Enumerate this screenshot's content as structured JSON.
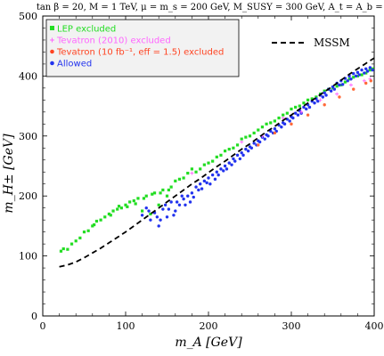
{
  "title": "tan β = 20,  M = 1 TeV,  μ = m_s = 200 GeV,  M_SUSY = 300 GeV,  A_t = A_b = 0",
  "chart_data": {
    "type": "scatter",
    "xlabel": "m_A [GeV]",
    "ylabel": "m_H± [GeV]",
    "xlim": [
      0,
      400
    ],
    "ylim": [
      0,
      500
    ],
    "xticks": [
      0,
      100,
      200,
      300,
      400
    ],
    "yticks": [
      0,
      100,
      200,
      300,
      400,
      500
    ],
    "grid": false,
    "legend_placement": "top-left",
    "series": [
      {
        "name": "LEP excluded",
        "color": "#22dd22",
        "marker": "square",
        "points": [
          [
            22,
            108
          ],
          [
            25,
            112
          ],
          [
            30,
            111
          ],
          [
            35,
            120
          ],
          [
            40,
            125
          ],
          [
            45,
            130
          ],
          [
            50,
            140
          ],
          [
            55,
            142
          ],
          [
            60,
            150
          ],
          [
            65,
            158
          ],
          [
            70,
            160
          ],
          [
            75,
            165
          ],
          [
            80,
            170
          ],
          [
            85,
            175
          ],
          [
            90,
            178
          ],
          [
            95,
            180
          ],
          [
            100,
            185
          ],
          [
            105,
            190
          ],
          [
            110,
            192
          ],
          [
            115,
            196
          ],
          [
            120,
            175
          ],
          [
            125,
            200
          ],
          [
            130,
            170
          ],
          [
            135,
            205
          ],
          [
            140,
            185
          ],
          [
            145,
            210
          ],
          [
            150,
            200
          ],
          [
            155,
            215
          ],
          [
            160,
            225
          ],
          [
            170,
            230
          ],
          [
            180,
            245
          ],
          [
            190,
            245
          ],
          [
            200,
            255
          ],
          [
            210,
            265
          ],
          [
            220,
            275
          ],
          [
            230,
            280
          ],
          [
            240,
            295
          ],
          [
            250,
            300
          ],
          [
            260,
            310
          ],
          [
            270,
            320
          ],
          [
            280,
            325
          ],
          [
            290,
            335
          ],
          [
            300,
            345
          ],
          [
            310,
            350
          ],
          [
            320,
            360
          ],
          [
            330,
            365
          ],
          [
            340,
            375
          ],
          [
            350,
            380
          ],
          [
            360,
            385
          ],
          [
            370,
            395
          ],
          [
            380,
            400
          ],
          [
            390,
            405
          ],
          [
            398,
            412
          ],
          [
            62,
            152
          ],
          [
            82,
            168
          ],
          [
            92,
            183
          ],
          [
            102,
            182
          ],
          [
            112,
            187
          ],
          [
            122,
            196
          ],
          [
            132,
            203
          ],
          [
            142,
            205
          ],
          [
            152,
            210
          ],
          [
            165,
            228
          ],
          [
            175,
            238
          ],
          [
            185,
            240
          ],
          [
            195,
            252
          ],
          [
            205,
            258
          ],
          [
            215,
            268
          ],
          [
            225,
            278
          ],
          [
            235,
            285
          ],
          [
            245,
            298
          ],
          [
            255,
            305
          ],
          [
            265,
            315
          ],
          [
            275,
            322
          ],
          [
            285,
            330
          ],
          [
            295,
            338
          ],
          [
            305,
            348
          ],
          [
            315,
            355
          ],
          [
            325,
            362
          ],
          [
            335,
            370
          ],
          [
            345,
            378
          ],
          [
            355,
            383
          ],
          [
            365,
            390
          ],
          [
            375,
            398
          ],
          [
            385,
            402
          ],
          [
            395,
            410
          ]
        ]
      },
      {
        "name": "Tevatron (2010) excluded",
        "color": "#ff66ff",
        "marker": "plus",
        "points": [
          [
            180,
            238
          ],
          [
            240,
            290
          ],
          [
            265,
            300
          ],
          [
            290,
            330
          ],
          [
            312,
            340
          ],
          [
            335,
            360
          ],
          [
            355,
            370
          ],
          [
            372,
            385
          ],
          [
            388,
            392
          ],
          [
            395,
            395
          ]
        ]
      },
      {
        "name": "Tevatron (10 fb⁻¹, eff = 1.5) excluded",
        "color": "#ff6a3a",
        "marker": "circle",
        "points": [
          [
            300,
            320
          ],
          [
            320,
            335
          ],
          [
            340,
            352
          ],
          [
            358,
            365
          ],
          [
            375,
            378
          ],
          [
            390,
            388
          ],
          [
            396,
            392
          ],
          [
            260,
            285
          ],
          [
            280,
            305
          ]
        ]
      },
      {
        "name": "Allowed",
        "color": "#2233ee",
        "marker": "circle",
        "points": [
          [
            120,
            168
          ],
          [
            125,
            180
          ],
          [
            130,
            160
          ],
          [
            135,
            172
          ],
          [
            140,
            150
          ],
          [
            145,
            178
          ],
          [
            150,
            165
          ],
          [
            155,
            190
          ],
          [
            160,
            175
          ],
          [
            165,
            185
          ],
          [
            170,
            195
          ],
          [
            175,
            200
          ],
          [
            180,
            205
          ],
          [
            185,
            215
          ],
          [
            190,
            220
          ],
          [
            195,
            225
          ],
          [
            200,
            230
          ],
          [
            205,
            235
          ],
          [
            210,
            240
          ],
          [
            215,
            245
          ],
          [
            220,
            250
          ],
          [
            225,
            255
          ],
          [
            230,
            262
          ],
          [
            235,
            268
          ],
          [
            240,
            272
          ],
          [
            245,
            278
          ],
          [
            250,
            282
          ],
          [
            255,
            288
          ],
          [
            260,
            292
          ],
          [
            265,
            298
          ],
          [
            270,
            302
          ],
          [
            275,
            308
          ],
          [
            280,
            312
          ],
          [
            285,
            318
          ],
          [
            290,
            322
          ],
          [
            295,
            328
          ],
          [
            300,
            332
          ],
          [
            305,
            338
          ],
          [
            310,
            342
          ],
          [
            315,
            348
          ],
          [
            320,
            352
          ],
          [
            325,
            358
          ],
          [
            330,
            362
          ],
          [
            335,
            368
          ],
          [
            340,
            372
          ],
          [
            345,
            378
          ],
          [
            350,
            382
          ],
          [
            355,
            388
          ],
          [
            360,
            392
          ],
          [
            365,
            396
          ],
          [
            370,
            400
          ],
          [
            375,
            404
          ],
          [
            380,
            406
          ],
          [
            385,
            410
          ],
          [
            390,
            412
          ],
          [
            395,
            414
          ],
          [
            128,
            175
          ],
          [
            138,
            165
          ],
          [
            148,
            185
          ],
          [
            158,
            168
          ],
          [
            168,
            200
          ],
          [
            178,
            190
          ],
          [
            188,
            210
          ],
          [
            198,
            222
          ],
          [
            208,
            228
          ],
          [
            218,
            242
          ],
          [
            228,
            252
          ],
          [
            238,
            262
          ],
          [
            248,
            275
          ],
          [
            258,
            285
          ],
          [
            268,
            295
          ],
          [
            278,
            305
          ],
          [
            288,
            315
          ],
          [
            298,
            325
          ],
          [
            308,
            335
          ],
          [
            318,
            345
          ],
          [
            328,
            355
          ],
          [
            338,
            365
          ],
          [
            348,
            375
          ],
          [
            358,
            385
          ],
          [
            368,
            392
          ],
          [
            378,
            400
          ],
          [
            388,
            405
          ],
          [
            398,
            410
          ],
          [
            142,
            160
          ],
          [
            152,
            178
          ],
          [
            162,
            190
          ],
          [
            172,
            185
          ],
          [
            182,
            198
          ],
          [
            192,
            212
          ],
          [
            202,
            220
          ],
          [
            212,
            235
          ],
          [
            222,
            245
          ],
          [
            232,
            258
          ],
          [
            242,
            268
          ],
          [
            252,
            280
          ],
          [
            262,
            290
          ],
          [
            272,
            300
          ],
          [
            282,
            308
          ],
          [
            292,
            320
          ],
          [
            302,
            330
          ],
          [
            312,
            338
          ],
          [
            322,
            348
          ],
          [
            332,
            358
          ],
          [
            342,
            368
          ],
          [
            352,
            378
          ],
          [
            362,
            386
          ],
          [
            372,
            395
          ],
          [
            382,
            402
          ],
          [
            392,
            408
          ]
        ]
      },
      {
        "name": "MSSM",
        "color": "#000000",
        "line": "dashed",
        "points": [
          [
            20,
            82
          ],
          [
            30,
            85
          ],
          [
            40,
            90
          ],
          [
            50,
            97
          ],
          [
            60,
            105
          ],
          [
            70,
            113
          ],
          [
            80,
            122
          ],
          [
            90,
            131
          ],
          [
            100,
            140
          ],
          [
            110,
            150
          ],
          [
            120,
            160
          ],
          [
            130,
            170
          ],
          [
            140,
            180
          ],
          [
            150,
            190
          ],
          [
            160,
            200
          ],
          [
            170,
            210
          ],
          [
            180,
            220
          ],
          [
            190,
            229
          ],
          [
            200,
            239
          ],
          [
            210,
            249
          ],
          [
            220,
            258
          ],
          [
            230,
            268
          ],
          [
            240,
            278
          ],
          [
            250,
            287
          ],
          [
            260,
            297
          ],
          [
            270,
            307
          ],
          [
            280,
            316
          ],
          [
            290,
            326
          ],
          [
            300,
            335
          ],
          [
            310,
            345
          ],
          [
            320,
            355
          ],
          [
            330,
            364
          ],
          [
            340,
            374
          ],
          [
            350,
            383
          ],
          [
            360,
            393
          ],
          [
            370,
            403
          ],
          [
            380,
            412
          ],
          [
            390,
            421
          ],
          [
            400,
            430
          ]
        ]
      }
    ]
  },
  "legend": {
    "items": [
      {
        "label": "LEP excluded",
        "color": "#22dd22",
        "marker": "square"
      },
      {
        "label": "Tevatron (2010) excluded",
        "color": "#ff66ff",
        "marker": "plus"
      },
      {
        "label": "Tevatron (10 fb⁻¹, eff = 1.5) excluded",
        "color": "#ff4422",
        "marker": "circle"
      },
      {
        "label": "Allowed",
        "color": "#2233ee",
        "marker": "circle"
      }
    ],
    "mssm_label": "MSSM"
  }
}
